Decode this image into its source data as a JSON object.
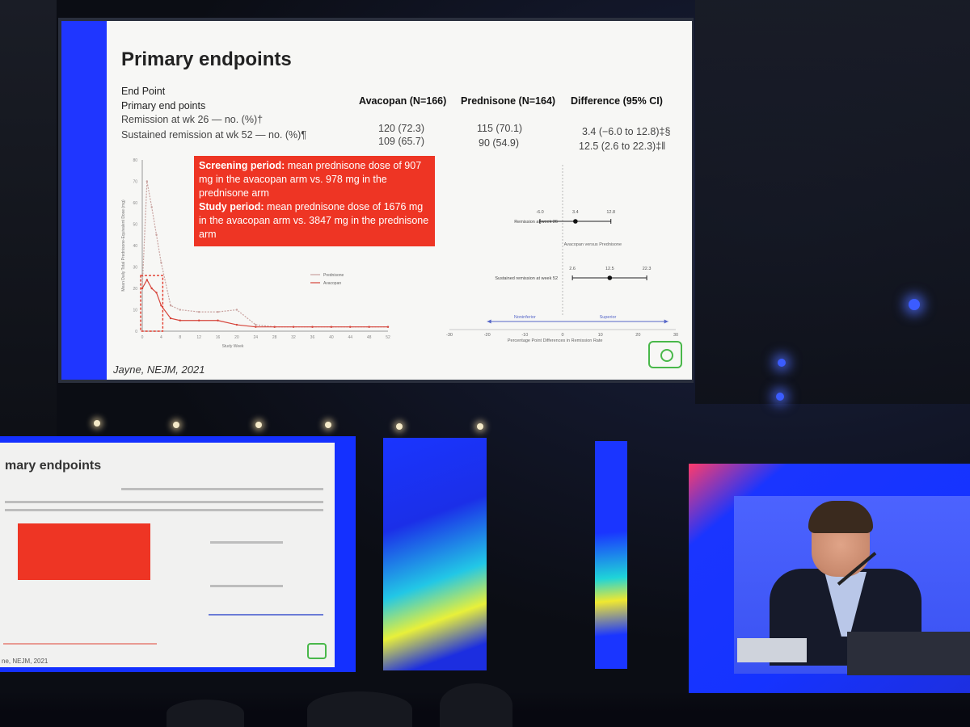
{
  "main_slide": {
    "title": "Primary endpoints",
    "table": {
      "header_col": "End Point",
      "header_group": "Primary end points",
      "columns": [
        "Avacopan (N=166)",
        "Prednisone (N=164)",
        "Difference (95% CI)"
      ],
      "rows": [
        {
          "label": "Remission at wk 26 — no. (%)†",
          "avacopan": "120 (72.3)",
          "prednisone": "115 (70.1)",
          "difference": "3.4 (−6.0 to 12.8)‡§"
        },
        {
          "label": "Sustained remission at wk 52 — no. (%)¶",
          "avacopan": "109 (65.7)",
          "prednisone": "90 (54.9)",
          "difference": "12.5 (2.6 to 22.3)‡‖"
        }
      ]
    },
    "callout": {
      "screening_label": "Screening period:",
      "screening_text": "mean prednisone dose of 907 mg in the avacopan arm vs. 978 mg in the prednisone arm",
      "study_label": "Study period:",
      "study_text": "mean prednisone dose of 1676 mg in the avacopan arm vs. 3847 mg in the prednisone arm"
    },
    "credit": "Jayne, NEJM, 2021",
    "line_chart": {
      "type": "line",
      "ylabel": "Mean Daily Total Prednisone-Equivalent Dose (mg)",
      "xlabel": "Study Week",
      "x_ticks": [
        "0",
        "4",
        "8",
        "12",
        "16",
        "20",
        "24",
        "28",
        "32",
        "36",
        "40",
        "44",
        "48",
        "52"
      ],
      "y_ticks": [
        "0",
        "10",
        "20",
        "30",
        "40",
        "50",
        "60",
        "70",
        "80"
      ],
      "legend": [
        "Prednisone",
        "Avacopan"
      ]
    },
    "forest_plot": {
      "row1_label": "Remission at week 26",
      "row1_values": [
        "-6.0",
        "3.4",
        "12.8"
      ],
      "mid_label": "Avacopan versus Prednisone",
      "row2_label": "Sustained remission at week 52",
      "row2_values": [
        "2.6",
        "12.5",
        "22.3"
      ],
      "left_arrow": "Noninferior",
      "right_arrow": "Superior",
      "x_ticks": [
        "-30",
        "-20",
        "-10",
        "0",
        "10",
        "20",
        "30"
      ],
      "xlabel": "Percentage Point Differences in Remission Rate"
    }
  },
  "left_slide": {
    "title": "mary endpoints",
    "credit": "ne, NEJM, 2021"
  },
  "chart_data": [
    {
      "type": "line",
      "title": "",
      "xlabel": "Study Week",
      "ylabel": "Mean Daily Total Prednisone-Equivalent Dose (mg)",
      "ylim": [
        0,
        80
      ],
      "x": [
        0,
        1,
        2,
        3,
        4,
        6,
        8,
        12,
        16,
        20,
        24,
        28,
        32,
        36,
        40,
        44,
        48,
        52
      ],
      "series": [
        {
          "name": "Prednisone",
          "values": [
            20,
            70,
            58,
            45,
            32,
            12,
            10,
            9,
            9,
            10,
            3,
            2,
            2,
            2,
            2,
            2,
            2,
            2
          ]
        },
        {
          "name": "Avacopan",
          "values": [
            20,
            24,
            20,
            18,
            12,
            6,
            5,
            5,
            5,
            3,
            2,
            2,
            2,
            2,
            2,
            2,
            2,
            2
          ]
        }
      ]
    },
    {
      "type": "scatter",
      "title": "",
      "xlabel": "Percentage Point Differences in Remission Rate",
      "xlim": [
        -30,
        30
      ],
      "categories": [
        "Remission at week 26",
        "Sustained remission at week 52"
      ],
      "estimates": [
        3.4,
        12.5
      ],
      "ci_low": [
        -6.0,
        2.6
      ],
      "ci_high": [
        12.8,
        22.3
      ]
    }
  ]
}
